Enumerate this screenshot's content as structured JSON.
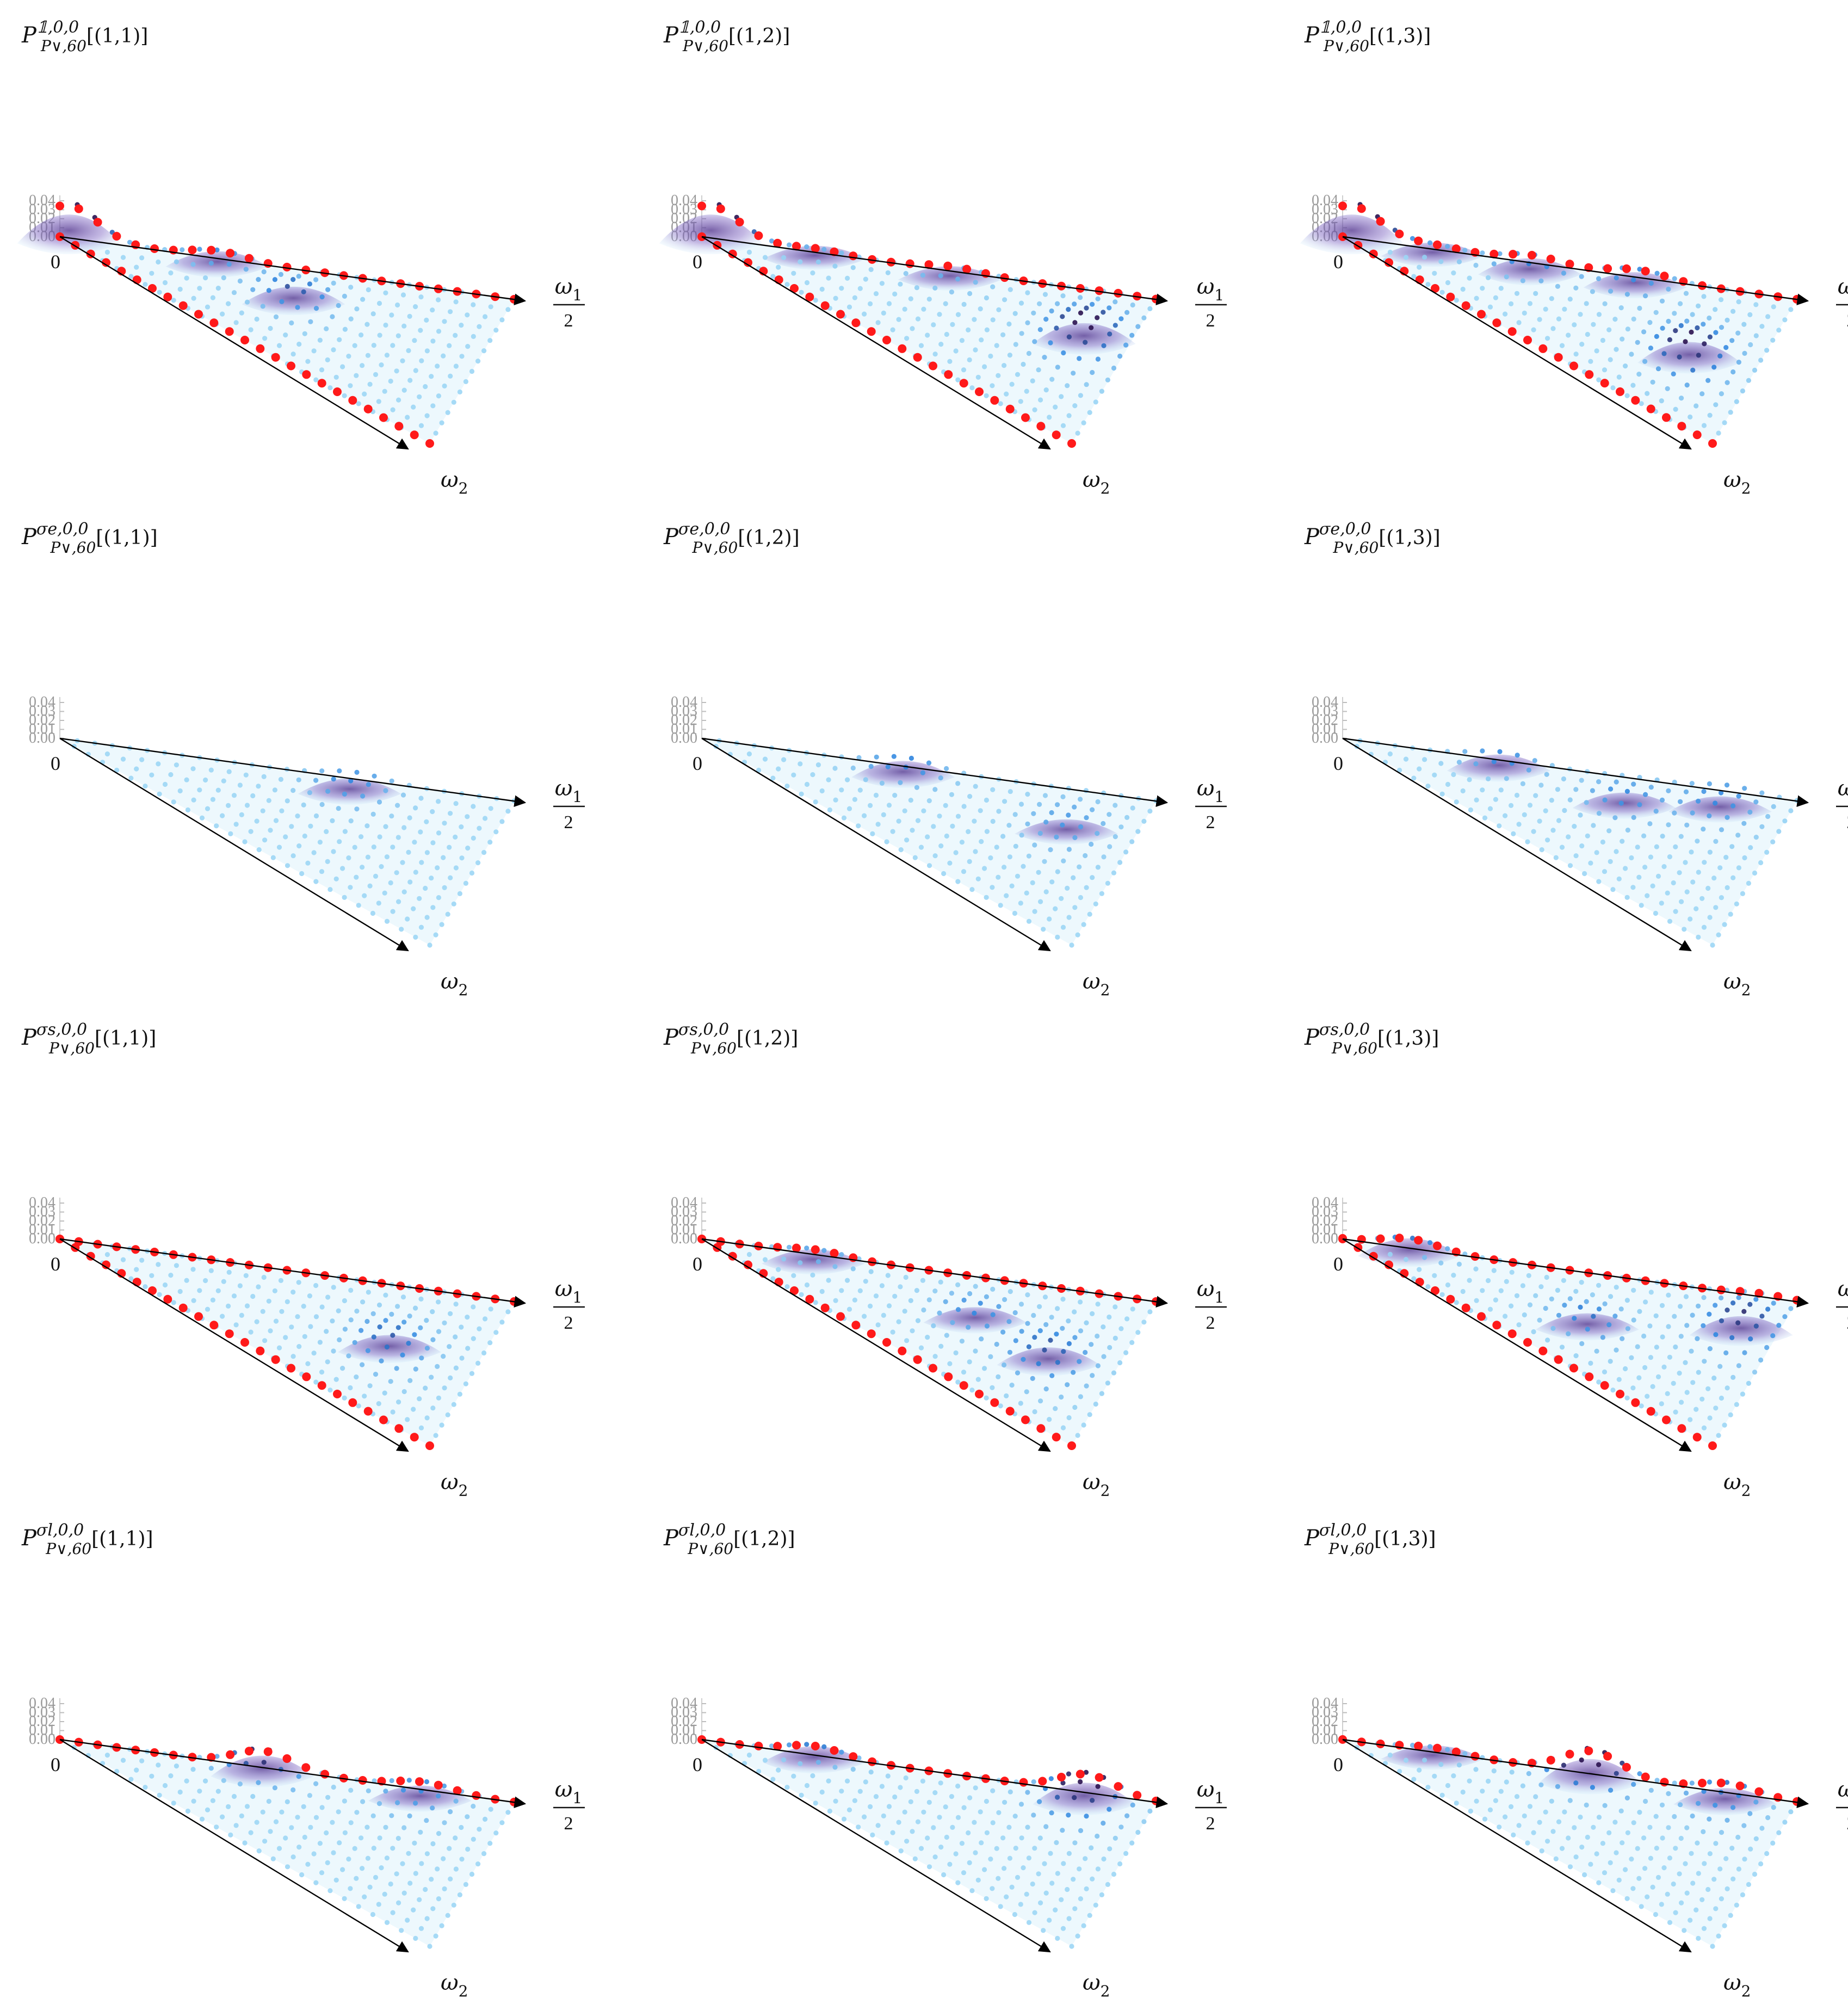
{
  "colors": {
    "point_red": "#ff1a1a",
    "point_blue_light": "#9cd6f5",
    "point_blue_mid": "#2f86e0",
    "point_purple_dark": "#2a1250",
    "surface_light": "#dff2fb",
    "surface_purple": "#6d4ea8",
    "axis": "#000000",
    "tick_text": "#9a9a9a"
  },
  "panel_labels": {
    "title_base": "P",
    "title_sub": "P∨,60",
    "title_sup_suffix": ",0,0",
    "x_axis_label": "ω",
    "x_axis_subscript": "1",
    "x_axis_denominator": "2",
    "y_axis_label": "ω",
    "y_axis_subscript": "2",
    "origin_label": "0"
  },
  "chart_data": [
    {
      "type": "scatter",
      "title": "P^{1,0,0}_{P∨,60}[(1,1)]",
      "sigma": "1",
      "arg": "[(1,1)]",
      "zlabel": "",
      "zlim": [
        0,
        0.04
      ],
      "zticks": [
        "0.00",
        "0.01",
        "0.02",
        "0.03",
        "0.04"
      ],
      "edge_points": [
        "omega2",
        "omega1"
      ],
      "peaks": [
        {
          "u": 0.02,
          "v": 0.0,
          "height": 0.04
        },
        {
          "u": 0.35,
          "v": 0.05,
          "height": 0.01
        },
        {
          "u": 0.55,
          "v": 0.35,
          "height": 0.015
        }
      ]
    },
    {
      "type": "scatter",
      "title": "P^{1,0,0}_{P∨,60}[(1,2)]",
      "sigma": "1",
      "arg": "[(1,2)]",
      "zlabel": "",
      "zlim": [
        0,
        0.04
      ],
      "zticks": [
        "0.00",
        "0.01",
        "0.02",
        "0.03",
        "0.04"
      ],
      "edge_points": [
        "omega2",
        "omega1"
      ],
      "peaks": [
        {
          "u": 0.02,
          "v": 0.0,
          "height": 0.04
        },
        {
          "u": 0.25,
          "v": 0.03,
          "height": 0.005
        },
        {
          "u": 0.55,
          "v": 0.04,
          "height": 0.006
        },
        {
          "u": 0.9,
          "v": 0.35,
          "height": 0.022
        }
      ]
    },
    {
      "type": "scatter",
      "title": "P^{1,0,0}_{P∨,60}[(1,3)]",
      "sigma": "1",
      "arg": "[(1,3)]",
      "zlabel": "",
      "zlim": [
        0,
        0.04
      ],
      "zticks": [
        "0.00",
        "0.01",
        "0.02",
        "0.03",
        "0.04"
      ],
      "edge_points": [
        "omega2",
        "omega1"
      ],
      "peaks": [
        {
          "u": 0.02,
          "v": 0.0,
          "height": 0.04
        },
        {
          "u": 0.2,
          "v": 0.05,
          "height": 0.006
        },
        {
          "u": 0.42,
          "v": 0.1,
          "height": 0.012
        },
        {
          "u": 0.65,
          "v": 0.05,
          "height": 0.01
        },
        {
          "u": 0.85,
          "v": 0.55,
          "height": 0.022
        }
      ]
    },
    {
      "type": "scatter",
      "title": "P^{σe,0,0}_{P∨,60}[(1,1)]",
      "sigma": "σe",
      "arg": "[(1,1)]",
      "zlabel": "",
      "zlim": [
        0,
        0.04
      ],
      "zticks": [
        "0.00",
        "0.01",
        "0.02",
        "0.03",
        "0.04"
      ],
      "edge_points": [],
      "peaks": [
        {
          "u": 0.65,
          "v": 0.1,
          "height": 0.01
        }
      ]
    },
    {
      "type": "scatter",
      "title": "P^{σe,0,0}_{P∨,60}[(1,2)]",
      "sigma": "σe",
      "arg": "[(1,2)]",
      "zlabel": "",
      "zlim": [
        0,
        0.04
      ],
      "zticks": [
        "0.00",
        "0.01",
        "0.02",
        "0.03",
        "0.04"
      ],
      "edge_points": [],
      "peaks": [
        {
          "u": 0.45,
          "v": 0.08,
          "height": 0.012
        },
        {
          "u": 0.85,
          "v": 0.3,
          "height": 0.008
        }
      ]
    },
    {
      "type": "scatter",
      "title": "P^{σe,0,0}_{P∨,60}[(1,3)]",
      "sigma": "σe",
      "arg": "[(1,3)]",
      "zlabel": "",
      "zlim": [
        0,
        0.04
      ],
      "zticks": [
        "0.00",
        "0.01",
        "0.02",
        "0.03",
        "0.04"
      ],
      "edge_points": [],
      "peaks": [
        {
          "u": 0.35,
          "v": 0.1,
          "height": 0.012
        },
        {
          "u": 0.65,
          "v": 0.25,
          "height": 0.01
        },
        {
          "u": 0.85,
          "v": 0.12,
          "height": 0.01
        }
      ]
    },
    {
      "type": "scatter",
      "title": "P^{σs,0,0}_{P∨,60}[(1,1)]",
      "sigma": "σs",
      "arg": "[(1,1)]",
      "zlabel": "",
      "zlim": [
        0,
        0.04
      ],
      "zticks": [
        "0.00",
        "0.01",
        "0.02",
        "0.03",
        "0.04"
      ],
      "edge_points": [
        "omega2",
        "omega1"
      ],
      "peaks": [
        {
          "u": 0.8,
          "v": 0.5,
          "height": 0.014
        }
      ]
    },
    {
      "type": "scatter",
      "title": "P^{σs,0,0}_{P∨,60}[(1,2)]",
      "sigma": "σs",
      "arg": "[(1,2)]",
      "zlabel": "",
      "zlim": [
        0,
        0.04
      ],
      "zticks": [
        "0.00",
        "0.01",
        "0.02",
        "0.03",
        "0.04"
      ],
      "edge_points": [
        "omega2",
        "omega1"
      ],
      "peaks": [
        {
          "u": 0.25,
          "v": 0.1,
          "height": 0.008
        },
        {
          "u": 0.65,
          "v": 0.4,
          "height": 0.01
        },
        {
          "u": 0.85,
          "v": 0.55,
          "height": 0.015
        }
      ]
    },
    {
      "type": "scatter",
      "title": "P^{σs,0,0}_{P∨,60}[(1,3)]",
      "sigma": "σs",
      "arg": "[(1,3)]",
      "zlabel": "",
      "zlim": [
        0,
        0.04
      ],
      "zticks": [
        "0.00",
        "0.01",
        "0.02",
        "0.03",
        "0.04"
      ],
      "edge_points": [
        "omega2",
        "omega1"
      ],
      "peaks": [
        {
          "u": 0.15,
          "v": 0.1,
          "height": 0.015
        },
        {
          "u": 0.6,
          "v": 0.55,
          "height": 0.012
        },
        {
          "u": 0.92,
          "v": 0.25,
          "height": 0.018
        }
      ]
    },
    {
      "type": "scatter",
      "title": "P^{σl,0,0}_{P∨,60}[(1,1)]",
      "sigma": "σl",
      "arg": "[(1,1)]",
      "zlabel": "",
      "zlim": [
        0,
        0.04
      ],
      "zticks": [
        "0.00",
        "0.01",
        "0.02",
        "0.03",
        "0.04"
      ],
      "edge_points": [
        "omega1"
      ],
      "peaks": [
        {
          "u": 0.45,
          "v": 0.05,
          "height": 0.022
        },
        {
          "u": 0.8,
          "v": 0.05,
          "height": 0.01
        }
      ]
    },
    {
      "type": "scatter",
      "title": "P^{σl,0,0}_{P∨,60}[(1,2)]",
      "sigma": "σl",
      "arg": "[(1,2)]",
      "zlabel": "",
      "zlim": [
        0,
        0.04
      ],
      "zticks": [
        "0.00",
        "0.01",
        "0.02",
        "0.03",
        "0.04"
      ],
      "edge_points": [
        "omega1"
      ],
      "peaks": [
        {
          "u": 0.25,
          "v": 0.05,
          "height": 0.012
        },
        {
          "u": 0.85,
          "v": 0.05,
          "height": 0.024
        }
      ]
    },
    {
      "type": "scatter",
      "title": "P^{σl,0,0}_{P∨,60}[(1,3)]",
      "sigma": "σl",
      "arg": "[(1,3)]",
      "zlabel": "",
      "zlim": [
        0,
        0.04
      ],
      "zticks": [
        "0.00",
        "0.01",
        "0.02",
        "0.03",
        "0.04"
      ],
      "edge_points": [
        "omega1"
      ],
      "peaks": [
        {
          "u": 0.2,
          "v": 0.05,
          "height": 0.006
        },
        {
          "u": 0.55,
          "v": 0.05,
          "height": 0.03
        },
        {
          "u": 0.85,
          "v": 0.05,
          "height": 0.012
        }
      ]
    }
  ]
}
